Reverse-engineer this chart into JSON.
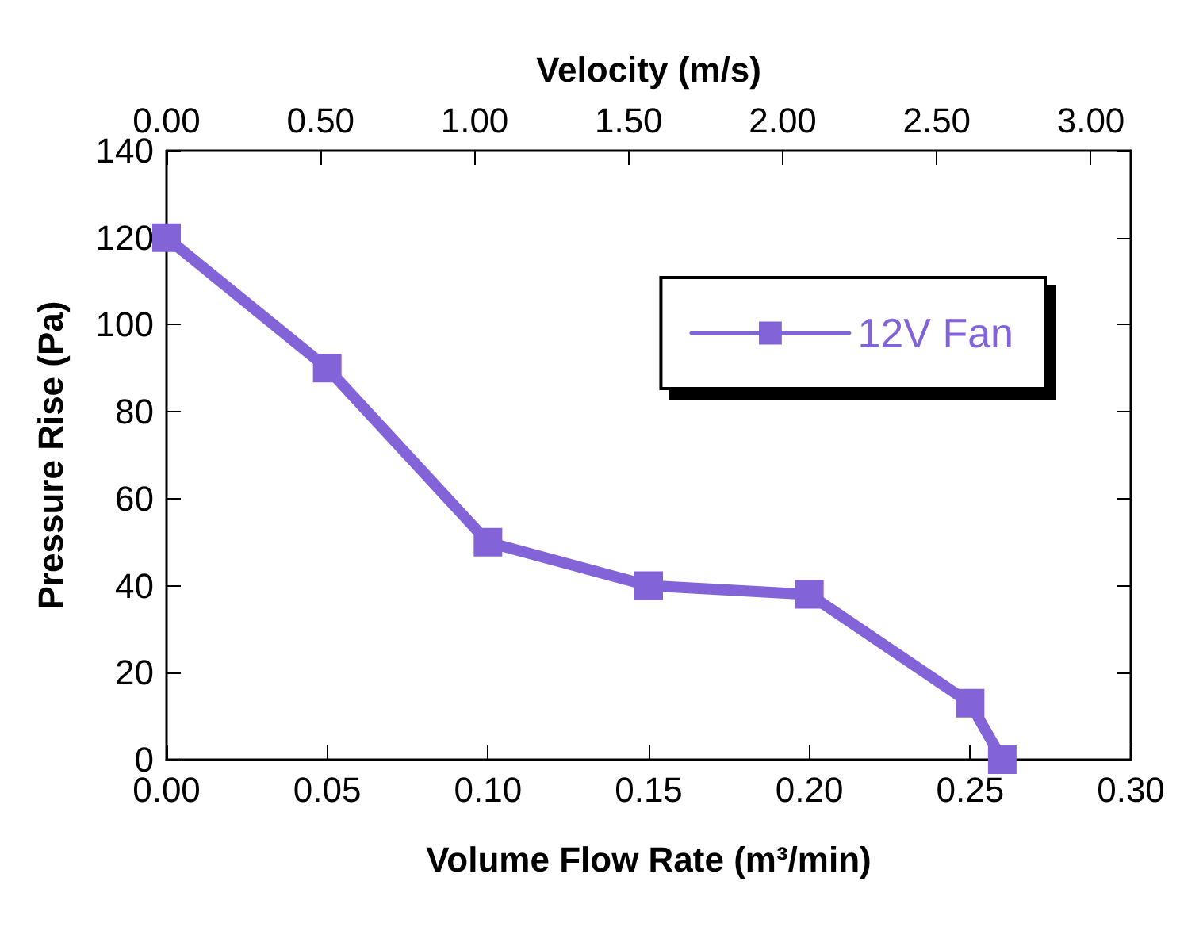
{
  "chart_data": {
    "type": "line",
    "xlabel": "Volume Flow Rate (m³/min)",
    "ylabel": "Pressure Rise (Pa)",
    "x2label": "Velocity (m/s)",
    "x": [
      0,
      0.05,
      0.1,
      0.15,
      0.2,
      0.25,
      0.26
    ],
    "series": [
      {
        "name": "12V Fan",
        "color": "#8364d8",
        "values": [
          120,
          90,
          50,
          40,
          38,
          13,
          0
        ]
      }
    ],
    "xlim": [
      0,
      0.3
    ],
    "xticks": [
      {
        "value": 0,
        "label": "0.00"
      },
      {
        "value": 0.05,
        "label": "0.05"
      },
      {
        "value": 0.1,
        "label": "0.10"
      },
      {
        "value": 0.15,
        "label": "0.15"
      },
      {
        "value": 0.2,
        "label": "0.20"
      },
      {
        "value": 0.25,
        "label": "0.25"
      },
      {
        "value": 0.3,
        "label": "0.30"
      }
    ],
    "x2lim": [
      0,
      3.13
    ],
    "x2ticks": [
      {
        "value": 0,
        "label": "0.00"
      },
      {
        "value": 0.5,
        "label": "0.50"
      },
      {
        "value": 1,
        "label": "1.00"
      },
      {
        "value": 1.5,
        "label": "1.50"
      },
      {
        "value": 2,
        "label": "2.00"
      },
      {
        "value": 2.5,
        "label": "2.50"
      },
      {
        "value": 3,
        "label": "3.00"
      }
    ],
    "ylim": [
      0,
      140
    ],
    "yticks": [
      0,
      20,
      40,
      60,
      80,
      100,
      120,
      140
    ],
    "marker": "square",
    "line_style": "solid",
    "legend": "top right",
    "grid": false
  }
}
